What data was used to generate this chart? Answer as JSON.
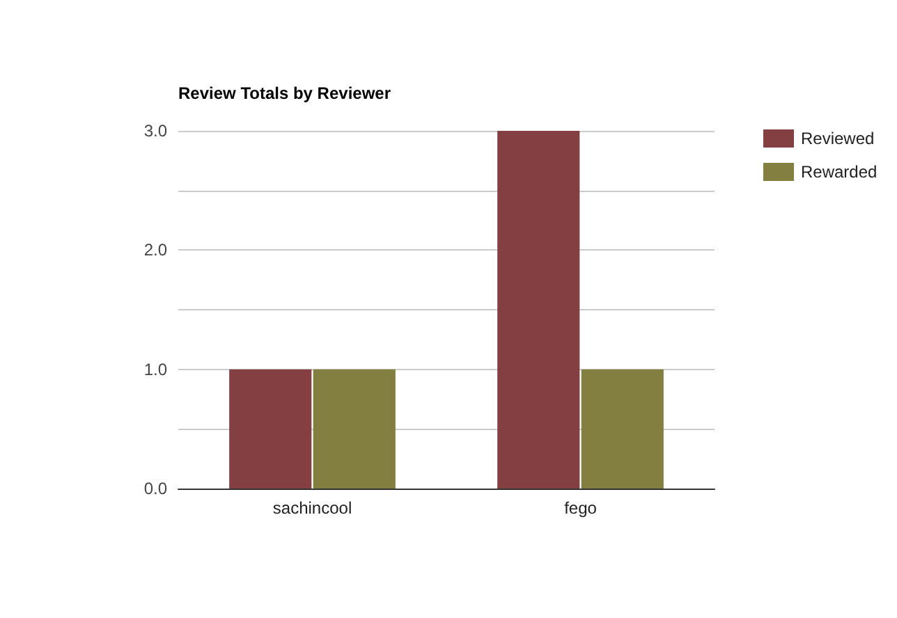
{
  "chart_data": {
    "type": "bar",
    "title": "Review Totals by Reviewer",
    "categories": [
      "sachincool",
      "fego"
    ],
    "series": [
      {
        "name": "Reviewed",
        "color": "#843f42",
        "values": [
          1,
          3
        ]
      },
      {
        "name": "Rewarded",
        "color": "#827f40",
        "values": [
          1,
          1
        ]
      }
    ],
    "ylim": [
      0,
      3
    ],
    "yticks": [
      {
        "value": 0,
        "label": "0.0"
      },
      {
        "value": 0.5,
        "label": null
      },
      {
        "value": 1,
        "label": "1.0"
      },
      {
        "value": 1.5,
        "label": null
      },
      {
        "value": 2,
        "label": "2.0"
      },
      {
        "value": 2.5,
        "label": null
      },
      {
        "value": 3,
        "label": "3.0"
      }
    ],
    "grid": "y",
    "legend": "right"
  }
}
